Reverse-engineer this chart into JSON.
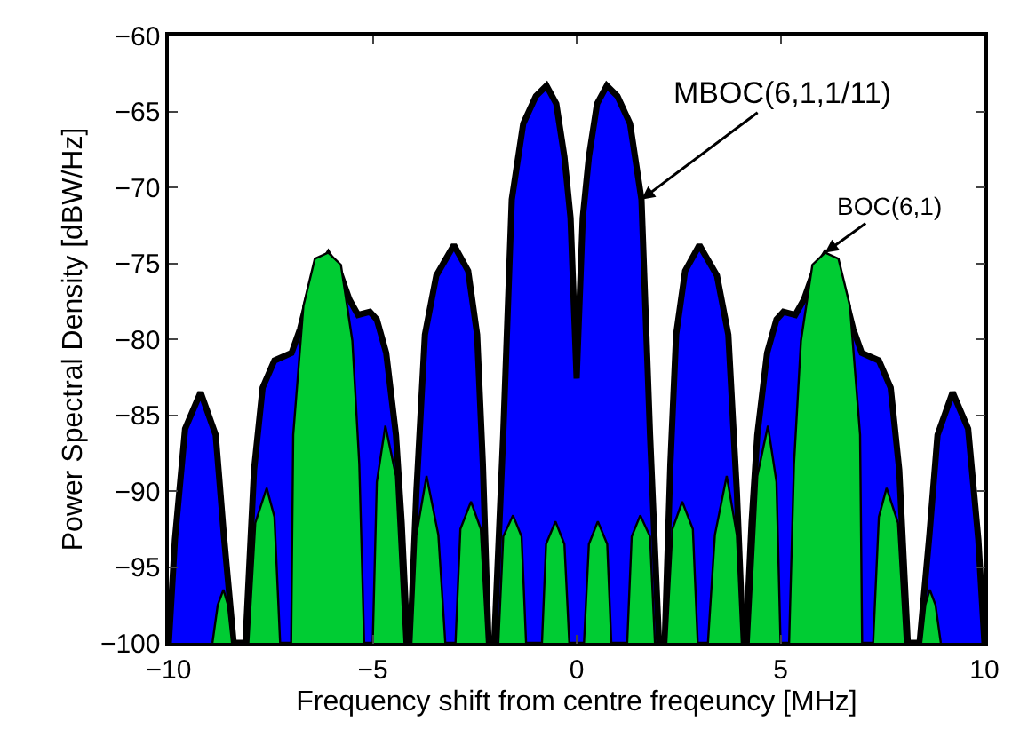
{
  "chart_data": {
    "type": "area",
    "xlabel": "Frequency shift from centre freqeuncy [MHz]",
    "ylabel": "Power Spectral Density [dBW/Hz]",
    "xlim": [
      -10,
      10
    ],
    "xticks": [
      -10,
      -5,
      0,
      5,
      10
    ],
    "ylim": [
      -100,
      -60
    ],
    "yticks": [
      -100,
      -95,
      -90,
      -85,
      -80,
      -75,
      -70,
      -65,
      -60
    ],
    "series": [
      {
        "color": "#0000ff",
        "x": [
          -10,
          -9.85,
          -9.6,
          -9.22,
          -8.85,
          -8.65,
          -8.41,
          -8.12,
          -7.91,
          -7.7,
          -7.41,
          -6.99,
          -6.78,
          -6.49,
          -6.09,
          -5.78,
          -5.57,
          -5.36,
          -5.07,
          -4.9,
          -4.67,
          -4.43,
          -4.29,
          -4.15,
          -4.08,
          -3.93,
          -3.72,
          -3.44,
          -3.01,
          -2.66,
          -2.44,
          -2.3,
          -2.16,
          -2.02,
          -1.8,
          -1.59,
          -1.31,
          -1,
          -0.74,
          -0.5,
          -0.3,
          -0.15,
          -0.05,
          0,
          0.05,
          0.15,
          0.3,
          0.5,
          0.74,
          1,
          1.31,
          1.59,
          1.8,
          2.02,
          2.16,
          2.3,
          2.44,
          2.66,
          3.01,
          3.44,
          3.72,
          3.93,
          4.08,
          4.15,
          4.29,
          4.43,
          4.67,
          4.9,
          5.07,
          5.36,
          5.57,
          5.78,
          6.09,
          6.49,
          6.78,
          6.99,
          7.41,
          7.7,
          7.91,
          8.12,
          8.41,
          8.65,
          8.85,
          9.22,
          9.6,
          9.85,
          10
        ],
        "values": [
          -100,
          -93.2,
          -85.9,
          -83.5,
          -86.3,
          -92.9,
          -100,
          -100,
          -88.6,
          -83.2,
          -81.4,
          -80.9,
          -79.3,
          -76.2,
          -74.4,
          -75.8,
          -77.4,
          -78.4,
          -78.2,
          -78.7,
          -80.9,
          -86.3,
          -92.1,
          -100,
          -100,
          -90.1,
          -79.7,
          -75.8,
          -73.8,
          -75.5,
          -79.7,
          -88.2,
          -100,
          -100,
          -86.3,
          -70.8,
          -65.8,
          -64,
          -63.3,
          -64.5,
          -68,
          -72,
          -79,
          -82.6,
          -79,
          -72,
          -68,
          -64.5,
          -63.3,
          -64,
          -65.8,
          -70.8,
          -86.3,
          -100,
          -100,
          -88.2,
          -79.7,
          -75.5,
          -73.8,
          -75.8,
          -79.7,
          -90.1,
          -100,
          -100,
          -92.1,
          -86.3,
          -80.9,
          -78.7,
          -78.2,
          -78.4,
          -77.4,
          -75.8,
          -74.4,
          -76.2,
          -79.3,
          -80.9,
          -81.4,
          -83.2,
          -88.6,
          -100,
          -100,
          -92.9,
          -86.3,
          -83.5,
          -85.9,
          -93.2,
          -100
        ]
      },
      {
        "color": "#00cc33",
        "x": [
          -8.93,
          -8.8,
          -8.66,
          -8.55,
          -8.45,
          -8.05,
          -7.88,
          -7.6,
          -7.41,
          -7.27,
          -7,
          -6.95,
          -6.7,
          -6.42,
          -6.09,
          -5.78,
          -5.5,
          -5.33,
          -5.21,
          -5,
          -4.9,
          -4.69,
          -4.43,
          -4.22,
          -4.05,
          -3.93,
          -3.68,
          -3.39,
          -3.22,
          -2.97,
          -2.85,
          -2.59,
          -2.35,
          -2.2,
          -1.92,
          -1.8,
          -1.56,
          -1.35,
          -1.24,
          -0.85,
          -0.75,
          -0.52,
          -0.3,
          -0.18,
          0.18,
          0.3,
          0.52,
          0.75,
          0.85,
          1.24,
          1.35,
          1.56,
          1.8,
          1.92,
          2.2,
          2.35,
          2.59,
          2.85,
          2.97,
          3.22,
          3.39,
          3.68,
          3.93,
          4.05,
          4.22,
          4.43,
          4.69,
          4.9,
          5,
          5.21,
          5.33,
          5.5,
          5.78,
          6.09,
          6.42,
          6.7,
          6.95,
          7,
          7.27,
          7.41,
          7.6,
          7.88,
          8.05,
          8.45,
          8.55,
          8.66,
          8.8,
          8.93
        ],
        "values": [
          -100,
          -97.5,
          -96.5,
          -97.5,
          -100,
          -100,
          -92.1,
          -89.8,
          -91.7,
          -100,
          -100,
          -86.3,
          -77.8,
          -74.7,
          -74.3,
          -75.1,
          -80.1,
          -88.2,
          -100,
          -100,
          -89.4,
          -85.7,
          -89,
          -100,
          -100,
          -92.9,
          -89,
          -92.9,
          -100,
          -100,
          -92.5,
          -90.7,
          -92.5,
          -100,
          -100,
          -93,
          -91.6,
          -93,
          -100,
          -100,
          -93.5,
          -92,
          -93.5,
          -100,
          -100,
          -93.5,
          -92,
          -93.5,
          -100,
          -100,
          -93,
          -91.6,
          -93,
          -100,
          -100,
          -92.5,
          -90.7,
          -92.5,
          -100,
          -100,
          -92.9,
          -89,
          -92.9,
          -100,
          -100,
          -89,
          -85.7,
          -89.4,
          -100,
          -100,
          -88.2,
          -80.1,
          -75.1,
          -74.3,
          -74.7,
          -77.8,
          -86.3,
          -100,
          -100,
          -91.7,
          -89.8,
          -92.1,
          -100,
          -100,
          -97.5,
          -96.5,
          -97.5,
          -100
        ]
      }
    ],
    "annotations": [
      {
        "text": "MBOC(6,1,1/11)",
        "x": 1.59,
        "y": -70.8
      },
      {
        "text": "BOC(6,1)",
        "x": 6.09,
        "y": -74.3
      }
    ]
  }
}
